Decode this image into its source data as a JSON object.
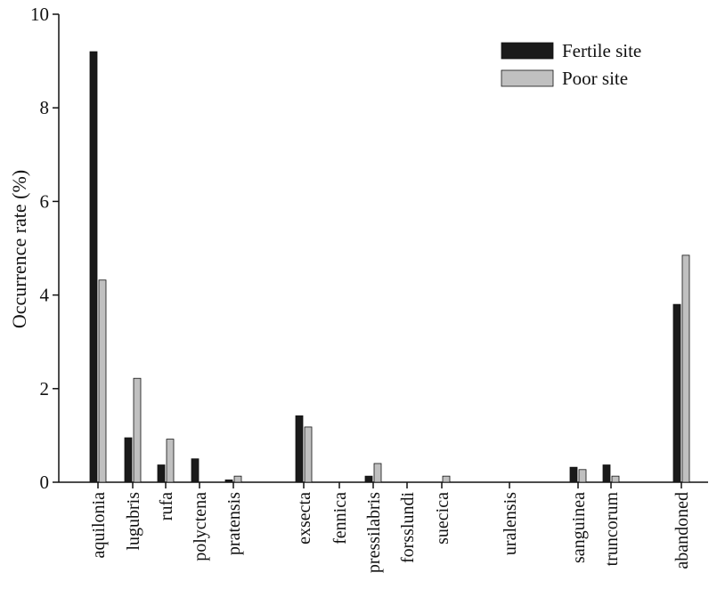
{
  "chart_data": {
    "type": "bar",
    "title": "",
    "xlabel": "",
    "ylabel": "Occurrence rate (%)",
    "ylim": [
      0,
      10
    ],
    "yticks": [
      0,
      2,
      4,
      6,
      8,
      10
    ],
    "categories": [
      "aquilonia",
      "lugubris",
      "rufa",
      "polyctena",
      "pratensis",
      "exsecta",
      "fennica",
      "pressilabris",
      "forsslundi",
      "suecica",
      "uralensis",
      "sanguinea",
      "truncorum",
      "abandoned"
    ],
    "series": [
      {
        "name": "Fertile site",
        "color": "#1a1a1a",
        "values": [
          9.2,
          0.95,
          0.37,
          0.5,
          0.05,
          1.42,
          0,
          0.13,
          0,
          0,
          0,
          0.32,
          0.37,
          3.8
        ]
      },
      {
        "name": "Poor site",
        "color": "#c0c0c0",
        "values": [
          4.32,
          2.22,
          0.92,
          0,
          0.13,
          1.18,
          0,
          0.4,
          0,
          0.13,
          0,
          0.27,
          0.13,
          4.85
        ]
      }
    ],
    "grid": false,
    "legend_position": "top-right"
  }
}
